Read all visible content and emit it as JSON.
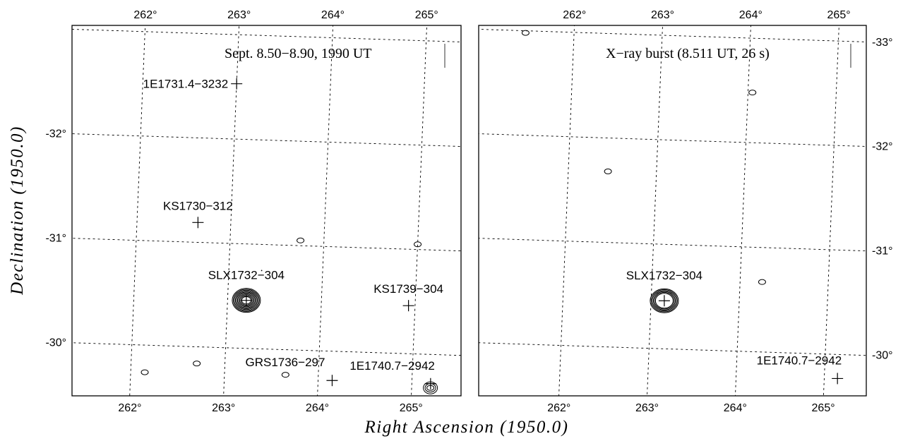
{
  "chart_data": {
    "type": "contour-map",
    "xlabel": "Right Ascension (1950.0)",
    "ylabel": "Declination (1950.0)",
    "x_ticks": [
      {
        "value": 262,
        "label": "262°"
      },
      {
        "value": 263,
        "label": "263°"
      },
      {
        "value": 264,
        "label": "264°"
      },
      {
        "value": 265,
        "label": "265°"
      }
    ],
    "y_ticks": [
      {
        "value": -33,
        "label": "-33°"
      },
      {
        "value": -32,
        "label": "-32°"
      },
      {
        "value": -31,
        "label": "-31°"
      },
      {
        "value": -30,
        "label": "-30°"
      }
    ],
    "panels": [
      {
        "title": "Sept. 8.50−8.90, 1990 UT",
        "sources": [
          {
            "name": "1E1731.4-3232",
            "label": "1E1731.4−3232",
            "ra": 263.0,
            "dec": -32.53
          },
          {
            "name": "KS1730-312",
            "label": "KS1730−312",
            "ra": 262.65,
            "dec": -31.19
          },
          {
            "name": "SLX1732-304",
            "label": "SLX1732−304",
            "ra": 263.2,
            "dec": -30.46
          },
          {
            "name": "KS1739-304",
            "label": "KS1739−304",
            "ra": 264.93,
            "dec": -30.46
          },
          {
            "name": "GRS1736-297",
            "label": "GRS1736−297",
            "ra": 264.15,
            "dec": -29.72
          },
          {
            "name": "1E1740.7-2942",
            "label": "1E1740.7−2942",
            "ra": 265.2,
            "dec": -29.72
          }
        ],
        "contours": [
          {
            "ra": 263.2,
            "dec": -30.46,
            "levels": 10,
            "peak": "strong"
          },
          {
            "ra": 262.15,
            "dec": -29.74,
            "levels": 1
          },
          {
            "ra": 262.7,
            "dec": -29.84,
            "levels": 1
          },
          {
            "ra": 263.65,
            "dec": -29.76,
            "levels": 1
          },
          {
            "ra": 263.75,
            "dec": -31.05,
            "levels": 1
          },
          {
            "ra": 265.0,
            "dec": -31.05,
            "levels": 1
          },
          {
            "ra": 265.2,
            "dec": -29.68,
            "levels": 3
          }
        ]
      },
      {
        "title": "X−ray burst (8.511 UT, 26 s)",
        "sources": [
          {
            "name": "SLX1732-304",
            "label": "SLX1732−304",
            "ra": 263.15,
            "dec": -30.46
          },
          {
            "name": "1E1740.7-2942",
            "label": "1E1740.7−2942",
            "ra": 265.15,
            "dec": -29.77
          }
        ],
        "contours": [
          {
            "ra": 263.15,
            "dec": -30.46,
            "levels": 6,
            "peak": "strong"
          },
          {
            "ra": 261.45,
            "dec": -32.98,
            "levels": 1
          },
          {
            "ra": 264.05,
            "dec": -32.48,
            "levels": 1
          },
          {
            "ra": 262.45,
            "dec": -31.68,
            "levels": 1
          },
          {
            "ra": 264.25,
            "dec": -30.67,
            "levels": 1
          }
        ]
      }
    ]
  }
}
